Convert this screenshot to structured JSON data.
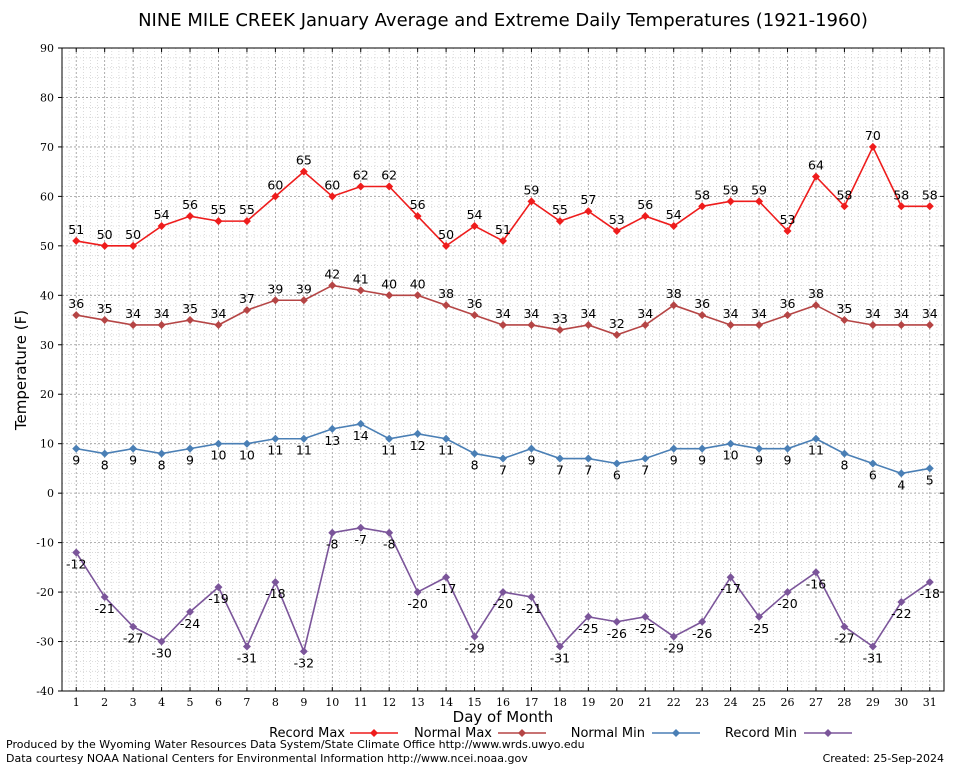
{
  "chart_data": {
    "type": "line",
    "title": "NINE MILE CREEK January Average and Extreme Daily Temperatures (1921-1960)",
    "xlabel": "Day of Month",
    "ylabel": "Temperature (F)",
    "ylim": [
      -40,
      90
    ],
    "yticks": [
      -40,
      -30,
      -20,
      -10,
      0,
      10,
      20,
      30,
      40,
      50,
      60,
      70,
      80,
      90
    ],
    "grid": true,
    "legend_position": "bottom",
    "x": [
      1,
      2,
      3,
      4,
      5,
      6,
      7,
      8,
      9,
      10,
      11,
      12,
      13,
      14,
      15,
      16,
      17,
      18,
      19,
      20,
      21,
      22,
      23,
      24,
      25,
      26,
      27,
      28,
      29,
      30,
      31
    ],
    "series": [
      {
        "name": "Record Max",
        "color": "#ee1c1c",
        "label_pos": "above",
        "values": [
          51,
          50,
          50,
          54,
          56,
          55,
          55,
          60,
          65,
          60,
          62,
          62,
          56,
          50,
          54,
          51,
          59,
          55,
          57,
          53,
          56,
          54,
          58,
          59,
          59,
          53,
          64,
          58,
          70,
          58,
          58
        ]
      },
      {
        "name": "Normal Max",
        "color": "#b54545",
        "label_pos": "above",
        "values": [
          36,
          35,
          34,
          34,
          35,
          34,
          37,
          39,
          39,
          42,
          41,
          40,
          40,
          38,
          36,
          34,
          34,
          33,
          34,
          32,
          34,
          38,
          36,
          34,
          34,
          36,
          38,
          35,
          34,
          34,
          34
        ]
      },
      {
        "name": "Normal Min",
        "color": "#4a7fb5",
        "label_pos": "below",
        "values": [
          9,
          8,
          9,
          8,
          9,
          10,
          10,
          11,
          11,
          13,
          14,
          11,
          12,
          11,
          8,
          7,
          9,
          7,
          7,
          6,
          7,
          9,
          9,
          10,
          9,
          9,
          11,
          8,
          6,
          4,
          5
        ]
      },
      {
        "name": "Record Min",
        "color": "#7b559a",
        "label_pos": "below",
        "values": [
          -12,
          -21,
          -27,
          -30,
          -24,
          -19,
          -31,
          -18,
          -32,
          -8,
          -7,
          -8,
          -20,
          -17,
          -29,
          -20,
          -21,
          -31,
          -25,
          -26,
          -25,
          -29,
          -26,
          -17,
          -25,
          -20,
          -16,
          -27,
          -31,
          -22,
          -18
        ]
      }
    ]
  },
  "footer": {
    "line1": "Produced by the Wyoming Water Resources Data System/State Climate Office http://www.wrds.uwyo.edu",
    "line2": "Data courtesy NOAA National Centers for Environmental Information http://www.ncei.noaa.gov",
    "created": "Created: 25-Sep-2024"
  }
}
